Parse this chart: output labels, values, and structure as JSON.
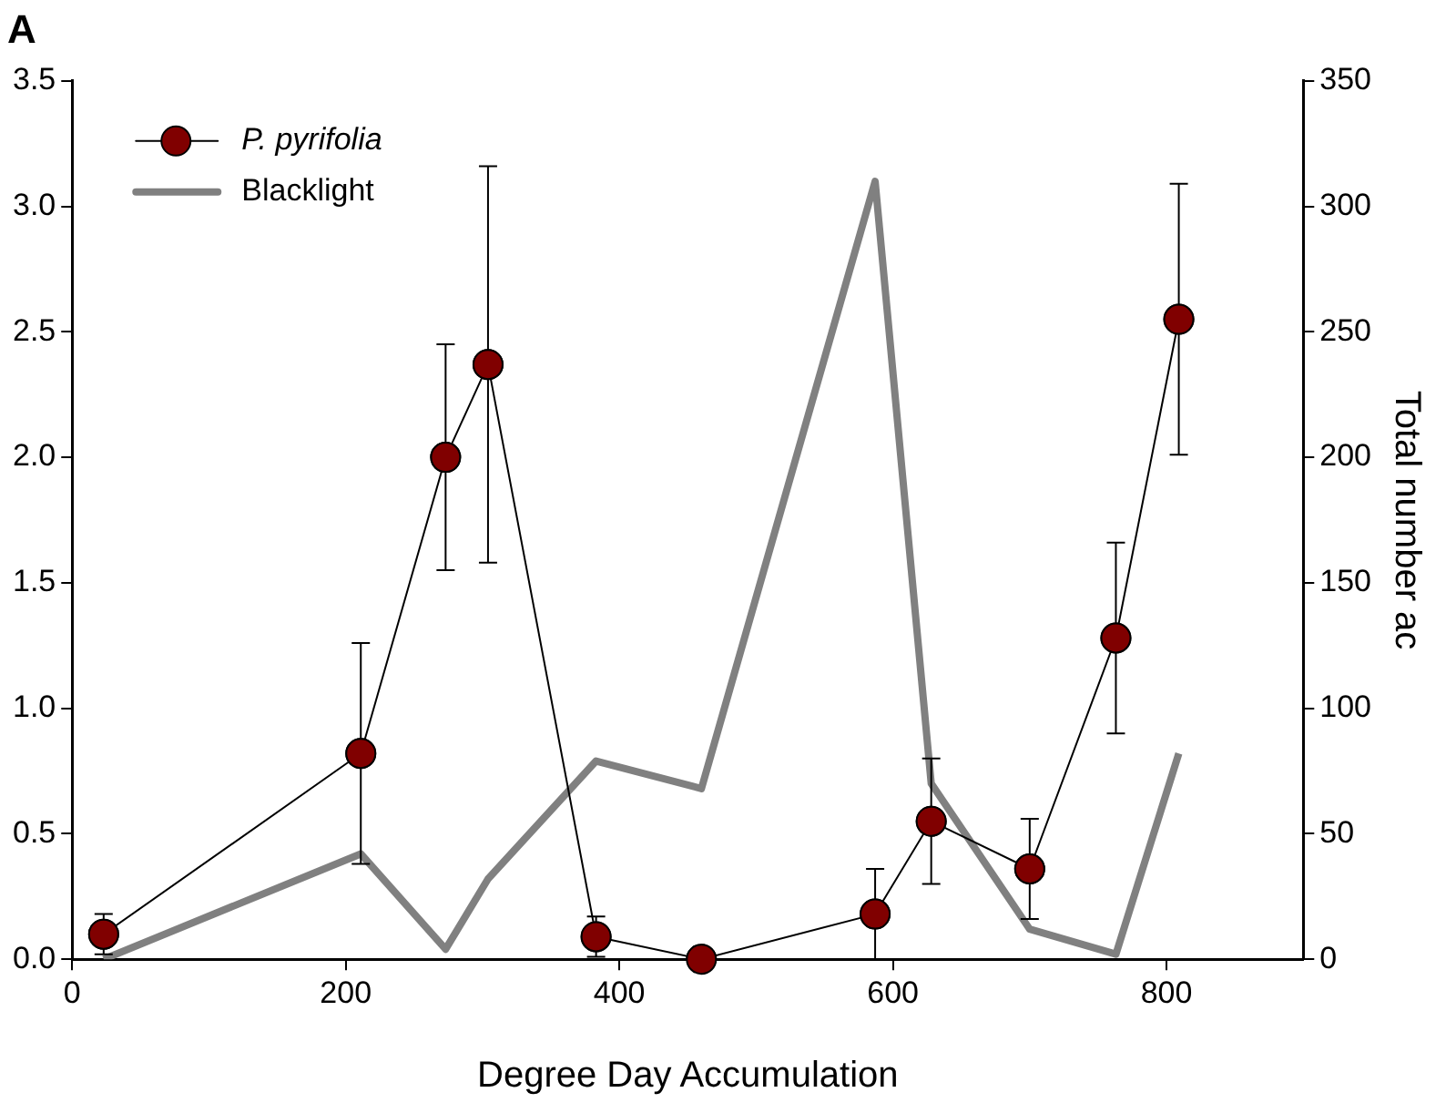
{
  "chart_data": {
    "type": "line",
    "title": "A",
    "xlabel": "Degree Day Accumulation",
    "y2label": "Total number ac",
    "xlim": [
      0,
      900
    ],
    "xticks": [
      0,
      200,
      400,
      600,
      800
    ],
    "ylim": [
      0,
      3.5
    ],
    "yticks": [
      {
        "value": 0,
        "label": "0.0"
      },
      0.5,
      {
        "value": 1,
        "label": "1.0"
      },
      1.5,
      {
        "value": 2,
        "label": "2.0"
      },
      2.5,
      {
        "value": 3,
        "label": "3.0"
      },
      3.5
    ],
    "y2lim": [
      0,
      350
    ],
    "y2ticks": [
      0,
      50,
      100,
      150,
      200,
      250,
      300,
      350
    ],
    "legend": "top left",
    "grid": false,
    "series": [
      {
        "name": "P. pyrifolia",
        "color": "#800000",
        "marker": "circle",
        "x": [
          23,
          211,
          273,
          304,
          383,
          460,
          587,
          628,
          700,
          763,
          809
        ],
        "values": [
          0.1,
          0.82,
          2.0,
          2.37,
          0.09,
          0,
          0.18,
          0.55,
          0.36,
          1.28,
          2.55
        ],
        "errors": [
          0.08,
          0.44,
          0.45,
          0.79,
          0.08,
          null,
          0.18,
          0.25,
          0.2,
          0.38,
          0.54
        ]
      },
      {
        "name": "Blacklight",
        "color": "#808080",
        "marker": "none",
        "axis": "y2",
        "x": [
          23,
          211,
          273,
          304,
          383,
          460,
          587,
          628,
          700,
          763,
          809
        ],
        "values": [
          0,
          42,
          4,
          32,
          79,
          68,
          310,
          70,
          12,
          2,
          82
        ]
      }
    ]
  }
}
